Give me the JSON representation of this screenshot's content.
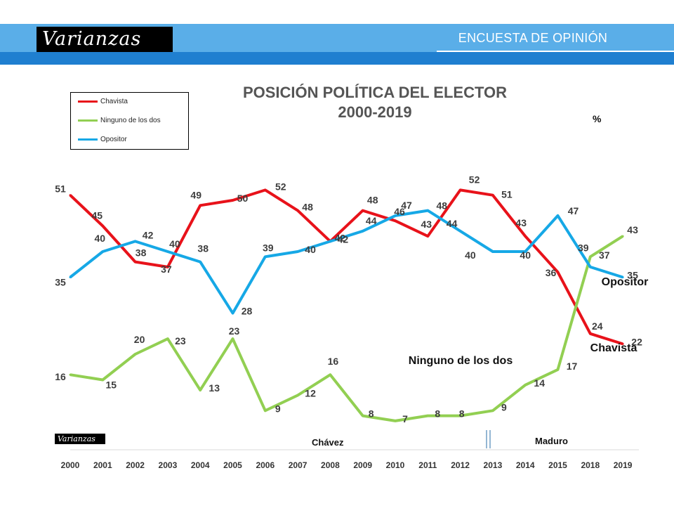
{
  "banner": {
    "title": "ENCUESTA DE OPINIÓN",
    "logo": "Varianzas"
  },
  "footer": {
    "logo": "Varianzas",
    "period_chavez": "Chávez",
    "period_maduro": "Maduro"
  },
  "chart_data": {
    "type": "line",
    "title_line1": "POSICIÓN POLÍTICA DEL ELECTOR",
    "title_line2": "2000-2019",
    "unit": "%",
    "x": [
      "2000",
      "2001",
      "2002",
      "2003",
      "2004",
      "2005",
      "2006",
      "2007",
      "2008",
      "2009",
      "2010",
      "2011",
      "2012",
      "2013",
      "2014",
      "2015",
      "2018",
      "2019"
    ],
    "ylim": [
      0,
      60
    ],
    "grid": false,
    "legend_position": "top-left",
    "series": [
      {
        "name": "Chavista",
        "color": "#e8121a",
        "label": "Chavista",
        "values": [
          51,
          45,
          38,
          37,
          49,
          50,
          52,
          48,
          42,
          48,
          46,
          43,
          52,
          51,
          43,
          36,
          24,
          22
        ]
      },
      {
        "name": "Ninguno de los dos",
        "color": "#92cf52",
        "label": "Ninguno de los dos",
        "values": [
          16,
          15,
          20,
          23,
          13,
          23,
          9,
          12,
          16,
          8,
          7,
          8,
          8,
          9,
          14,
          17,
          39,
          43
        ]
      },
      {
        "name": "Opositor",
        "color": "#16a8e6",
        "label": "Opositor",
        "values": [
          35,
          40,
          42,
          40,
          38,
          28,
          39,
          40,
          42,
          44,
          47,
          48,
          44,
          40,
          40,
          47,
          37,
          35
        ]
      }
    ]
  }
}
